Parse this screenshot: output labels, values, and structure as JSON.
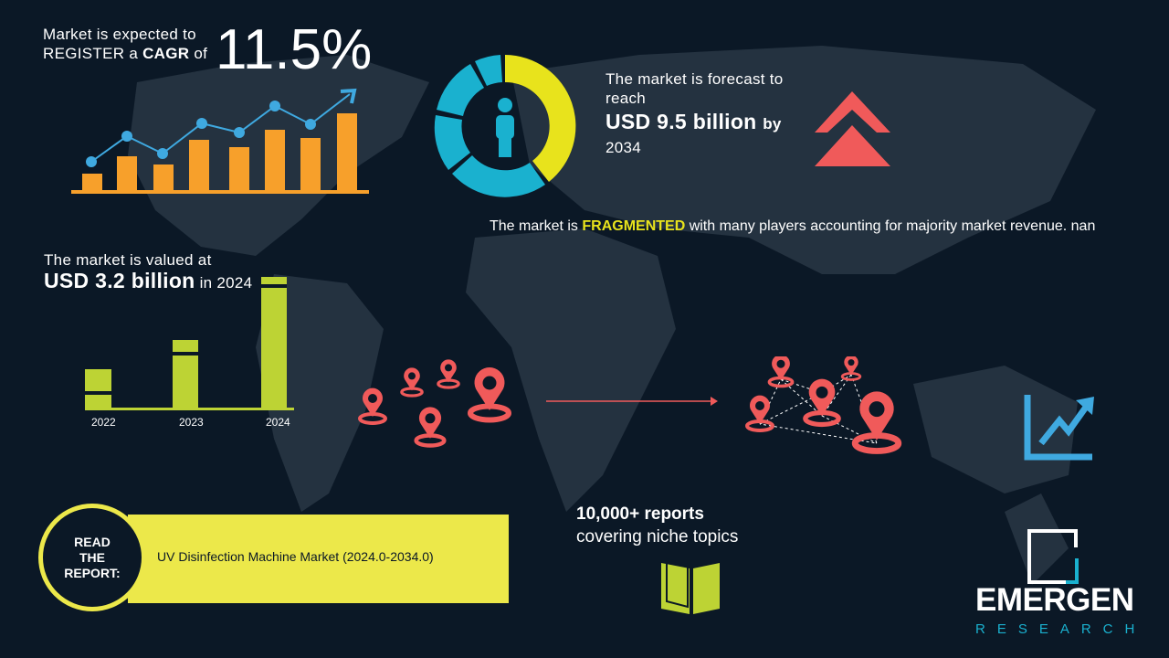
{
  "cagr": {
    "line1": "Market is expected to",
    "line2_pre": "REGISTER a ",
    "line2_bold": "CAGR",
    "line2_post": " of",
    "value": "11.5%"
  },
  "forecast": {
    "line1": "The market is forecast to",
    "line2": "reach",
    "value": "USD 9.5 billion",
    "by": "by",
    "year": "2034"
  },
  "fragmented": {
    "pre": "The market is ",
    "highlight": "FRAGMENTED",
    "post": " with many players accounting for majority market revenue. nan"
  },
  "valued": {
    "line1": "The market is valued at",
    "value": "USD 3.2 billion",
    "suffix": "in 2024"
  },
  "years": [
    "2022",
    "2023",
    "2024"
  ],
  "reports": {
    "line1": "10,000+ reports",
    "line2": "covering niche topics"
  },
  "read_report": {
    "label_lines": [
      "READ",
      "THE",
      "REPORT:"
    ],
    "title": "UV Disinfection Machine Market (2024.0-2034.0)"
  },
  "logo": {
    "name": "EMERGEN",
    "sub": "RESEARCH"
  },
  "colors": {
    "background": "#0b1826",
    "orange": "#f7a02b",
    "blue": "#3fa9e0",
    "yellow": "#ece84a",
    "green": "#bdd334",
    "red": "#f05a5a",
    "teal": "#1ab1cf"
  },
  "icons": [
    "trend-chart-icon",
    "donut-person-icon",
    "chevron-up-icon",
    "location-pin-icon",
    "growth-arrow-icon",
    "open-book-icon",
    "emergen-logo"
  ]
}
